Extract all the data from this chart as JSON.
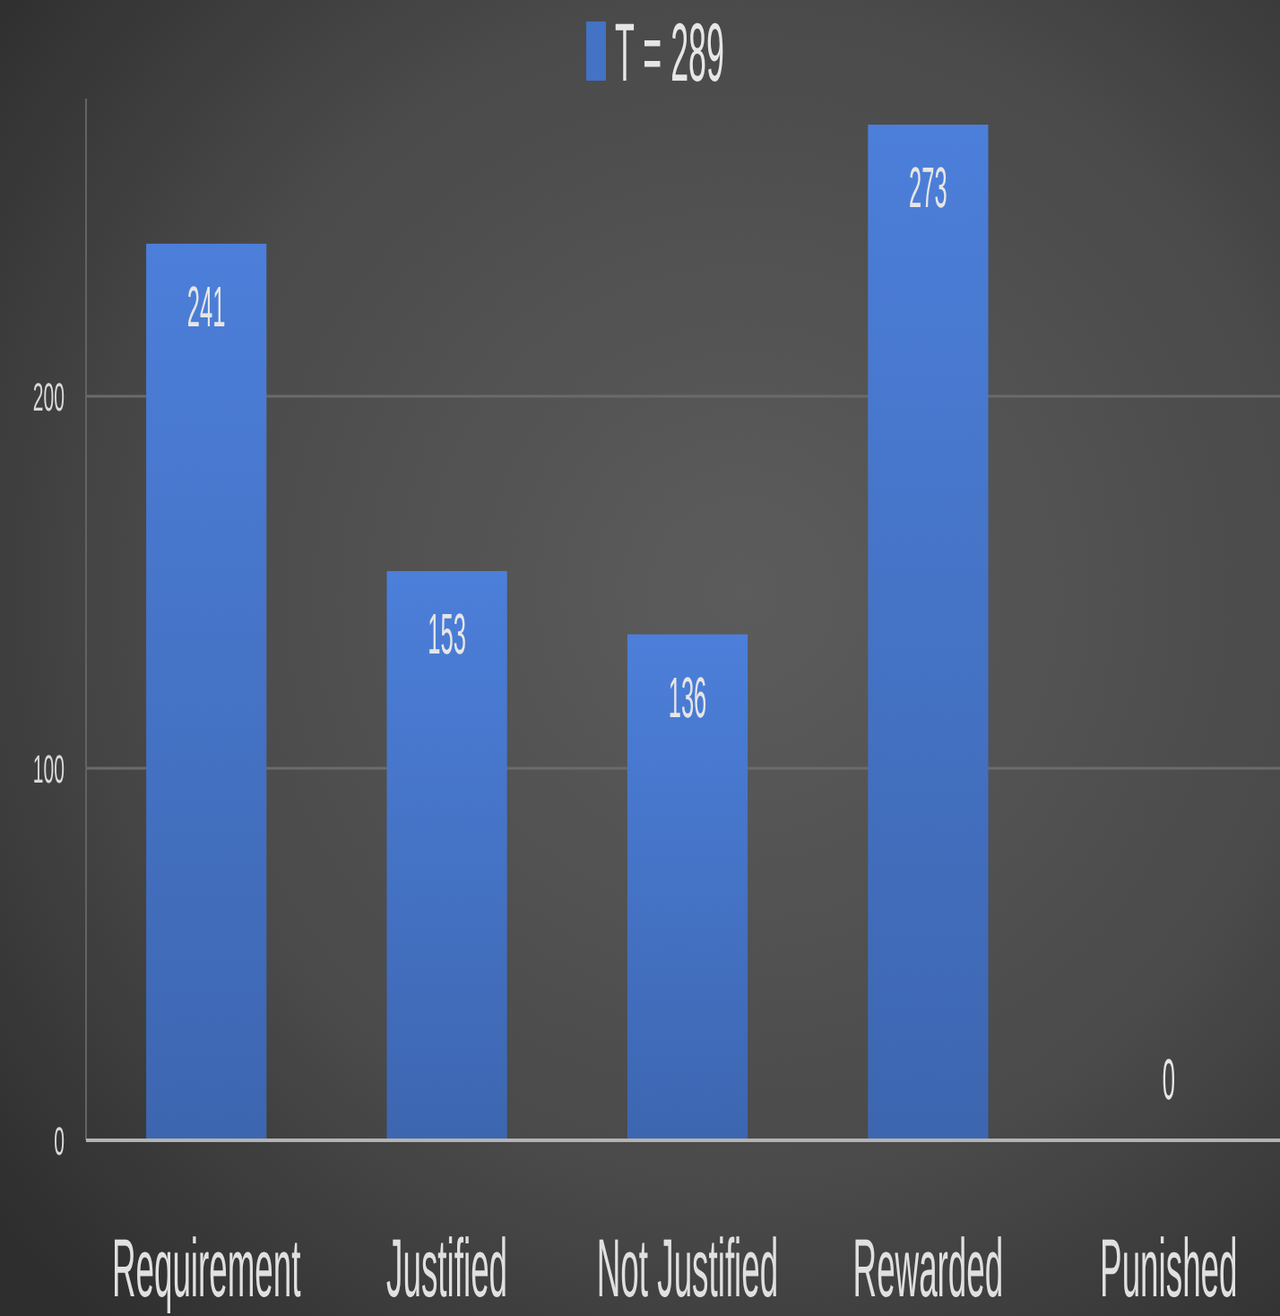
{
  "chart_data": {
    "type": "bar",
    "categories": [
      "Requirement",
      "Justified",
      "Not Justified",
      "Rewarded",
      "Punished"
    ],
    "series": [
      {
        "name": "T = 289",
        "color": "#4472c4",
        "values": [
          241,
          153,
          136,
          273,
          0
        ]
      }
    ],
    "ylim": [
      0,
      280
    ],
    "yticks": [
      0,
      100,
      200
    ],
    "grid": "y",
    "legend": "top",
    "data_labels": true
  }
}
